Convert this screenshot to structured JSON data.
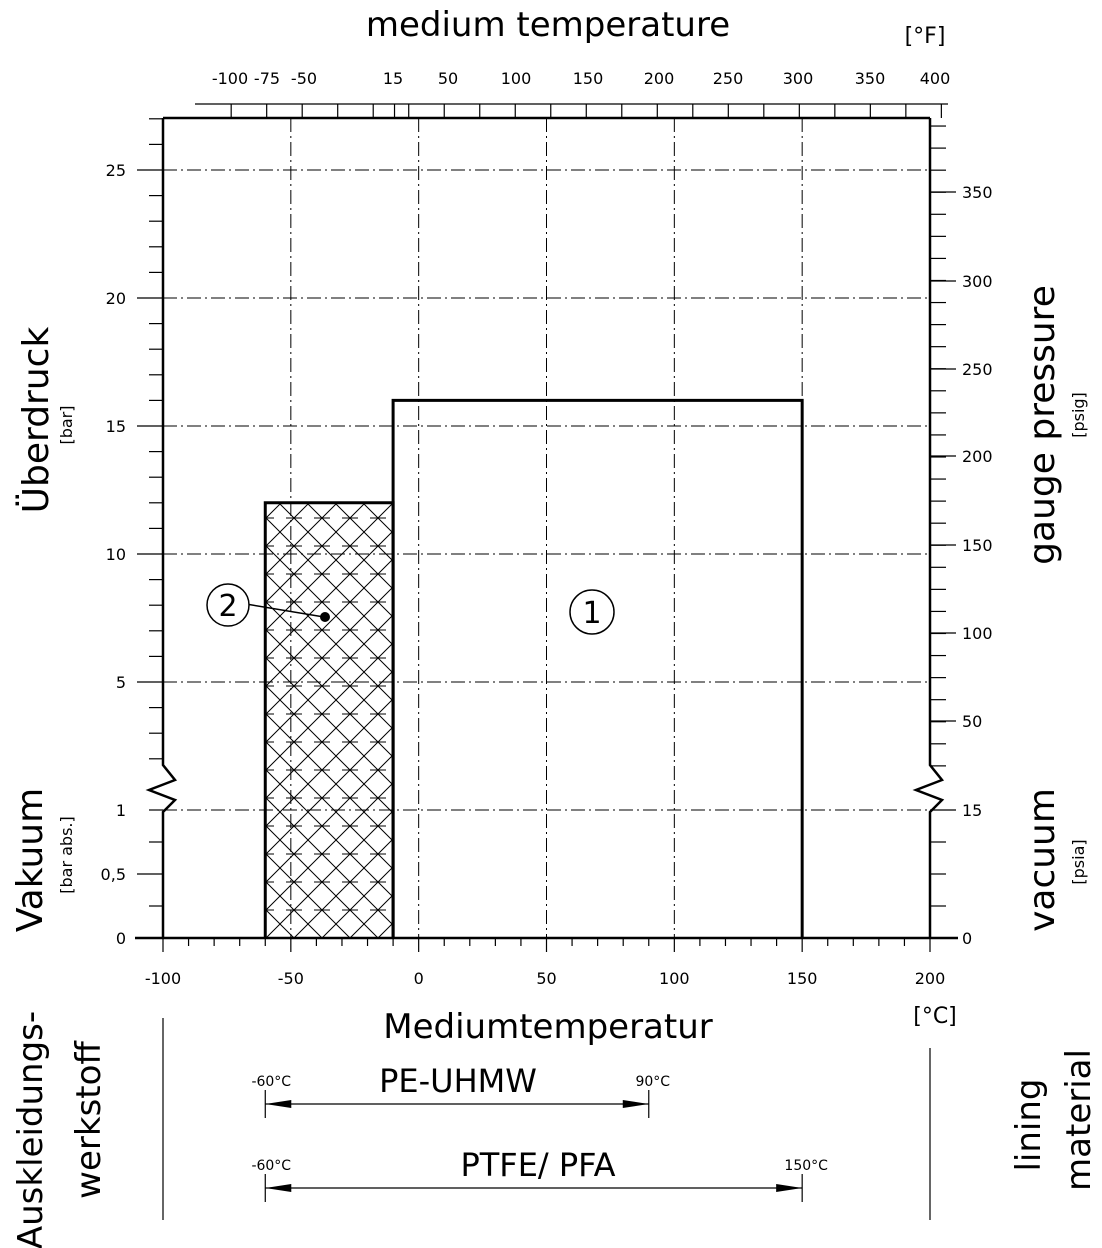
{
  "chart_data": {
    "type": "area",
    "top_title": "medium temperature",
    "top_unit": "[°F]",
    "top_ticks": [
      -100,
      -75,
      -50,
      15,
      50,
      100,
      150,
      200,
      250,
      300,
      350,
      400
    ],
    "bottom_title": "Mediumtemperatur",
    "bottom_unit": "[°C]",
    "xlim": [
      -100,
      200
    ],
    "x_ticks": [
      -100,
      -50,
      0,
      50,
      100,
      150,
      200
    ],
    "left_title": "Überdruck",
    "left_unit": "[bar]",
    "left_vacuum_title": "Vakuum",
    "left_vacuum_unit": "[bar abs.]",
    "left_ticks": [
      "0",
      "0,5",
      "1",
      "5",
      "10",
      "15",
      "20",
      "25"
    ],
    "right_title": "gauge pressure",
    "right_unit": "[psig]",
    "right_vacuum_title": "vacuum",
    "right_vacuum_unit": "[psia]",
    "right_ticks": [
      "0",
      "15",
      "50",
      "100",
      "150",
      "200",
      "250",
      "300",
      "350"
    ],
    "ylim": [
      0,
      27
    ],
    "grid": true,
    "series": [
      {
        "name": "1",
        "x_range": [
          -10,
          150
        ],
        "pressure_bar": 16,
        "vacuum_bar_abs": 0,
        "fill": "none"
      },
      {
        "name": "2",
        "x_range": [
          -60,
          -10
        ],
        "pressure_bar": 12,
        "vacuum_bar_abs": 0,
        "fill": "crosshatch"
      }
    ]
  },
  "lining": {
    "title_left": "Auskleidungs-",
    "title_left_2": "werkstoff",
    "title_right": "lining",
    "title_right_2": "material",
    "materials": [
      {
        "name": "PE-UHMW",
        "min": "-60°C",
        "max": "90°C",
        "min_val": -60,
        "max_val": 90
      },
      {
        "name": "PTFE/ PFA",
        "min": "-60°C",
        "max": "150°C",
        "min_val": -60,
        "max_val": 150
      }
    ]
  }
}
